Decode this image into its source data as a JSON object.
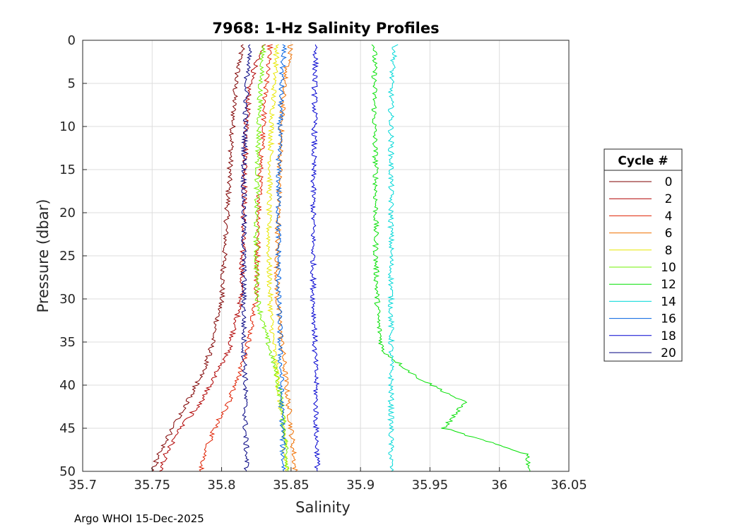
{
  "chart_data": {
    "type": "line",
    "title": "7968: 1-Hz Salinity Profiles",
    "xlabel": "Salinity",
    "ylabel": "Pressure (dbar)",
    "xlim": [
      35.7,
      36.05
    ],
    "ylim": [
      0,
      50
    ],
    "y_reversed": true,
    "grid": true,
    "xticks": [
      35.7,
      35.75,
      35.8,
      35.85,
      35.9,
      35.95,
      36,
      36.05
    ],
    "xtick_labels": [
      "35.7",
      "35.75",
      "35.8",
      "35.85",
      "35.9",
      "35.95",
      "36",
      "36.05"
    ],
    "yticks": [
      0,
      5,
      10,
      15,
      20,
      25,
      30,
      35,
      40,
      45,
      50
    ],
    "ytick_labels": [
      "0",
      "5",
      "10",
      "15",
      "20",
      "25",
      "30",
      "35",
      "40",
      "45",
      "50"
    ],
    "legend": {
      "title": "Cycle #",
      "placement": "outside-right",
      "entries": [
        "0",
        "2",
        "4",
        "6",
        "8",
        "10",
        "12",
        "14",
        "16",
        "18",
        "20"
      ]
    },
    "series": [
      {
        "name": "0",
        "color": "#7f0000",
        "x": [
          35.815,
          35.81,
          35.808,
          35.806,
          35.804,
          35.802,
          35.8,
          35.796,
          35.792,
          35.785,
          35.775,
          35.765,
          35.755,
          35.75
        ],
        "y": [
          0.5,
          5,
          10,
          15,
          20,
          25,
          30,
          33,
          36,
          39,
          42,
          45,
          48,
          50
        ]
      },
      {
        "name": "2",
        "color": "#b00000",
        "x": [
          35.83,
          35.82,
          35.818,
          35.817,
          35.816,
          35.815,
          35.814,
          35.81,
          35.805,
          35.795,
          35.785,
          35.77,
          35.76,
          35.755
        ],
        "y": [
          0.5,
          5,
          10,
          15,
          20,
          25,
          30,
          33,
          36,
          39,
          42,
          45,
          48,
          50
        ]
      },
      {
        "name": "4",
        "color": "#e02000",
        "x": [
          35.835,
          35.832,
          35.83,
          35.828,
          35.827,
          35.826,
          35.825,
          35.822,
          35.818,
          35.812,
          35.805,
          35.795,
          35.788,
          35.785
        ],
        "y": [
          0.5,
          5,
          10,
          15,
          20,
          25,
          30,
          33,
          36,
          39,
          42,
          45,
          48,
          50
        ]
      },
      {
        "name": "6",
        "color": "#f07000",
        "x": [
          35.85,
          35.845,
          35.843,
          35.842,
          35.841,
          35.84,
          35.84,
          35.842,
          35.844,
          35.846,
          35.848,
          35.85,
          35.852,
          35.853
        ],
        "y": [
          0.5,
          5,
          10,
          15,
          20,
          25,
          30,
          33,
          36,
          39,
          42,
          45,
          48,
          50
        ]
      },
      {
        "name": "8",
        "color": "#e8e800",
        "x": [
          35.84,
          35.838,
          35.836,
          35.835,
          35.834,
          35.834,
          35.835,
          35.836,
          35.838,
          35.84,
          35.842,
          35.845,
          35.846,
          35.847
        ],
        "y": [
          0.5,
          5,
          10,
          15,
          20,
          25,
          30,
          33,
          36,
          39,
          42,
          45,
          48,
          50
        ]
      },
      {
        "name": "10",
        "color": "#70f000",
        "x": [
          35.83,
          35.828,
          35.827,
          35.826,
          35.825,
          35.825,
          35.826,
          35.83,
          35.835,
          35.84,
          35.843,
          35.845,
          35.847,
          35.848
        ],
        "y": [
          0.5,
          5,
          10,
          15,
          20,
          25,
          30,
          33,
          36,
          39,
          42,
          45,
          48,
          50
        ]
      },
      {
        "name": "12",
        "color": "#00e000",
        "x": [
          35.91,
          35.91,
          35.91,
          35.911,
          35.911,
          35.911,
          35.912,
          35.913,
          35.916,
          35.94,
          35.975,
          35.96,
          36.02,
          36.022
        ],
        "y": [
          0.5,
          5,
          10,
          15,
          20,
          25,
          30,
          33,
          36,
          39,
          42,
          45,
          48,
          50
        ]
      },
      {
        "name": "14",
        "color": "#00d8d8",
        "x": [
          35.925,
          35.922,
          35.922,
          35.922,
          35.922,
          35.922,
          35.922,
          35.922,
          35.922,
          35.922,
          35.922,
          35.922,
          35.922,
          35.922
        ],
        "y": [
          0.5,
          5,
          10,
          15,
          20,
          25,
          30,
          33,
          36,
          39,
          42,
          45,
          48,
          50
        ]
      },
      {
        "name": "16",
        "color": "#0060e0",
        "x": [
          35.845,
          35.843,
          35.842,
          35.841,
          35.841,
          35.841,
          35.841,
          35.842,
          35.842,
          35.843,
          35.843,
          35.844,
          35.844,
          35.845
        ],
        "y": [
          0.5,
          5,
          10,
          15,
          20,
          25,
          30,
          33,
          36,
          39,
          42,
          45,
          48,
          50
        ]
      },
      {
        "name": "18",
        "color": "#0000d0",
        "x": [
          35.868,
          35.867,
          35.867,
          35.866,
          35.866,
          35.866,
          35.866,
          35.867,
          35.867,
          35.868,
          35.868,
          35.868,
          35.869,
          35.869
        ],
        "y": [
          0.5,
          5,
          10,
          15,
          20,
          25,
          30,
          33,
          36,
          39,
          42,
          45,
          48,
          50
        ]
      },
      {
        "name": "20",
        "color": "#000080",
        "x": [
          35.82,
          35.818,
          35.817,
          35.816,
          35.816,
          35.816,
          35.816,
          35.816,
          35.816,
          35.817,
          35.817,
          35.817,
          35.818,
          35.818
        ],
        "y": [
          0.5,
          5,
          10,
          15,
          20,
          25,
          30,
          33,
          36,
          39,
          42,
          45,
          48,
          50
        ]
      }
    ]
  },
  "footer": "Argo WHOI 15-Dec-2025"
}
